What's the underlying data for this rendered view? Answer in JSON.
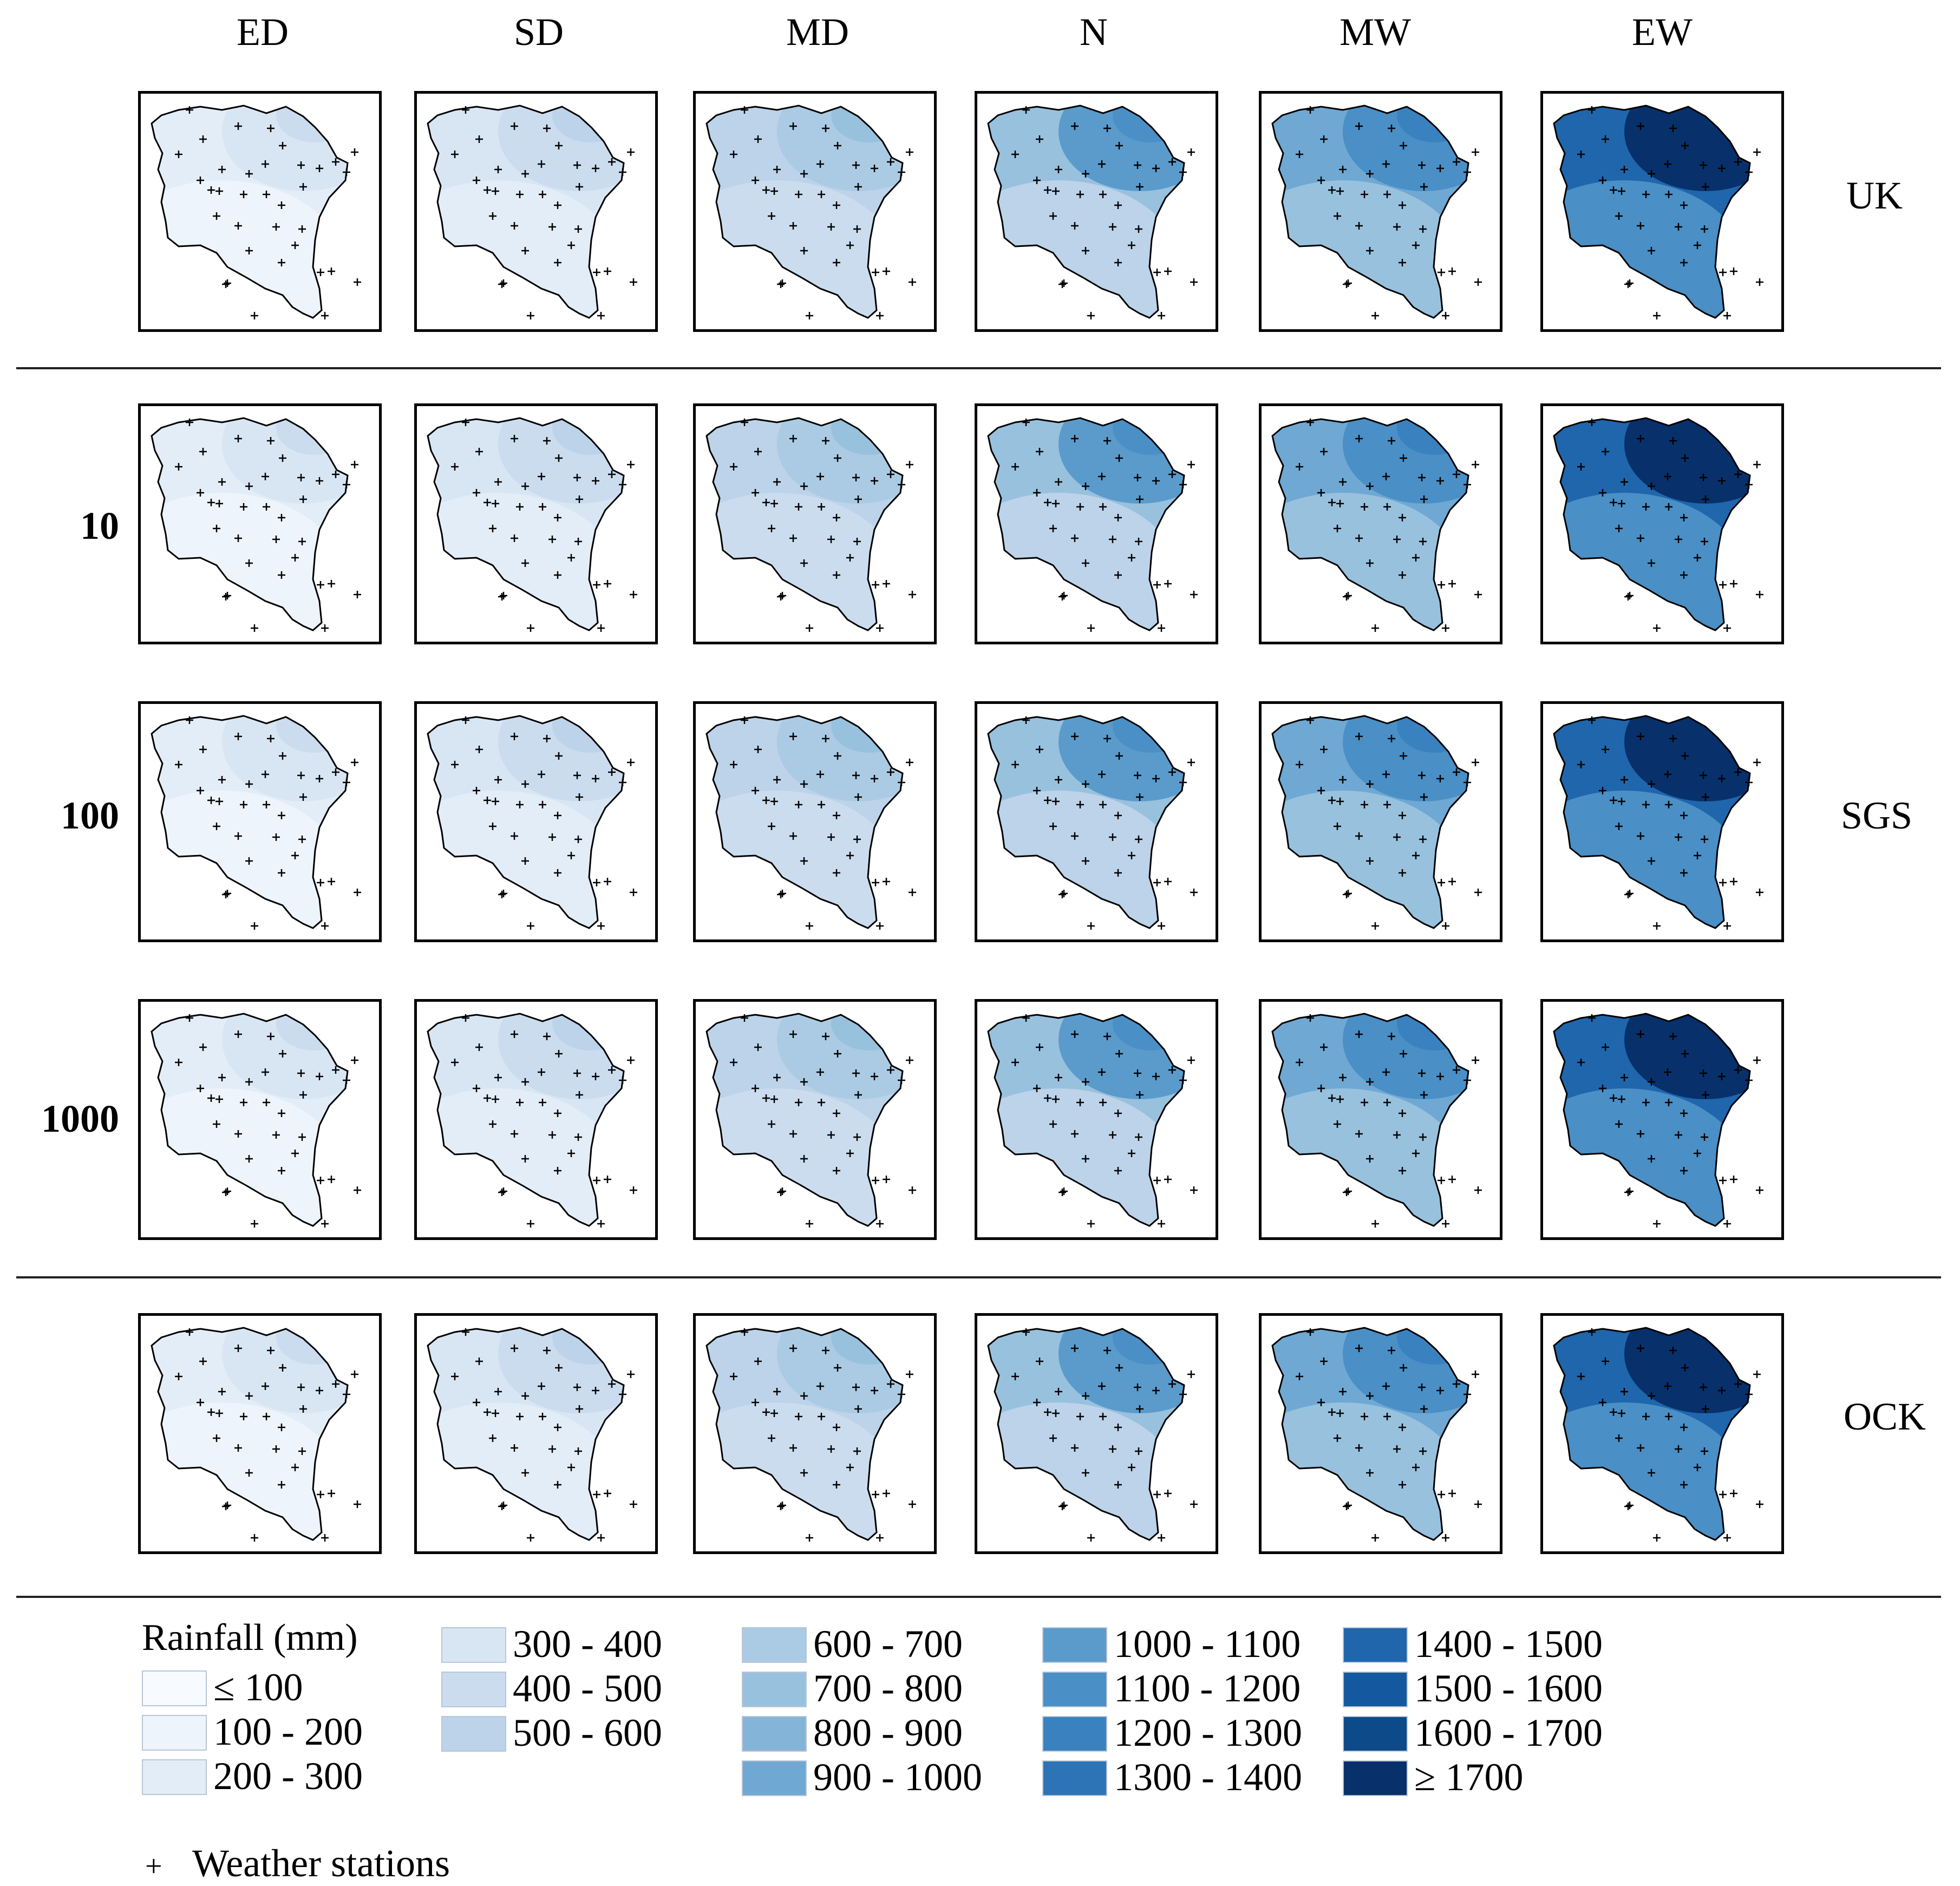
{
  "columns": [
    "ED",
    "SD",
    "MD",
    "N",
    "MW",
    "EW"
  ],
  "methods": {
    "uk": "UK",
    "sgs": "SGS",
    "ock": "OCK"
  },
  "sgs_realizations": [
    "10",
    "100",
    "1000"
  ],
  "legend": {
    "title": "Rainfall (mm)",
    "classes": [
      {
        "label": "≤ 100",
        "color": "#f7fbff"
      },
      {
        "label": "100 - 200",
        "color": "#eef4fb"
      },
      {
        "label": "200 - 300",
        "color": "#e3edf8"
      },
      {
        "label": "300 - 400",
        "color": "#d8e6f4"
      },
      {
        "label": "400 - 500",
        "color": "#cbdcef"
      },
      {
        "label": "500 - 600",
        "color": "#bcd3ea"
      },
      {
        "label": "600 - 700",
        "color": "#aacbe3"
      },
      {
        "label": "700 - 800",
        "color": "#98c1de"
      },
      {
        "label": "800 - 900",
        "color": "#84b5d9"
      },
      {
        "label": "900 - 1000",
        "color": "#6fa8d3"
      },
      {
        "label": "1000 - 1100",
        "color": "#5a9bcc"
      },
      {
        "label": "1100 - 1200",
        "color": "#4a8fc6"
      },
      {
        "label": "1200 - 1300",
        "color": "#3a82bf"
      },
      {
        "label": "1300 - 1400",
        "color": "#2c74b6"
      },
      {
        "label": "1400 - 1500",
        "color": "#1f66ac"
      },
      {
        "label": "1500 - 1600",
        "color": "#1458a0"
      },
      {
        "label": "1600 - 1700",
        "color": "#0c4a8a"
      },
      {
        "label": "≥ 1700",
        "color": "#08306b"
      }
    ],
    "stations_mark": "+",
    "stations_label": "Weather stations"
  }
}
